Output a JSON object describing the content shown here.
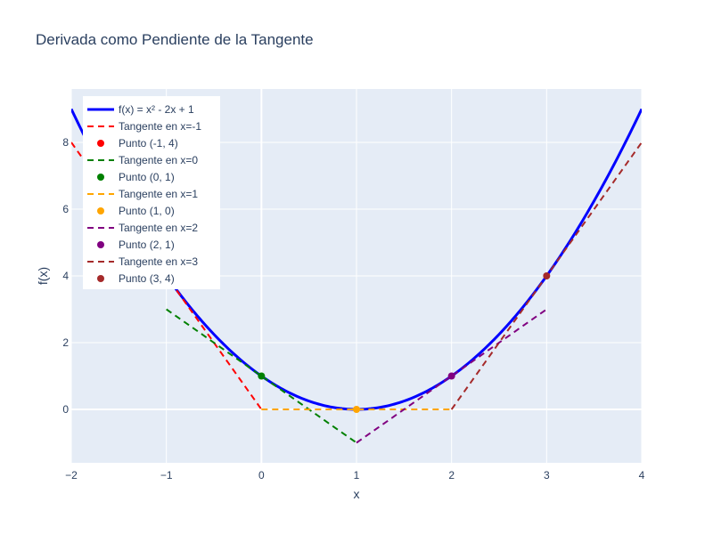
{
  "chart_data": {
    "type": "line",
    "title": "Derivada como Pendiente de la Tangente",
    "xlabel": "x",
    "ylabel": "f(x)",
    "xlim": [
      -2,
      4
    ],
    "ylim": [
      -1.6,
      9.6
    ],
    "x_ticks": [
      -2,
      -1,
      0,
      1,
      2,
      3,
      4
    ],
    "x_tick_labels": [
      "−2",
      "−1",
      "0",
      "1",
      "2",
      "3",
      "4"
    ],
    "y_ticks": [
      0,
      2,
      4,
      6,
      8
    ],
    "y_tick_labels": [
      "0",
      "2",
      "4",
      "6",
      "8"
    ],
    "grid": true,
    "legend_position": "top-left",
    "colors": {
      "plot_bg": "#e5ecf6",
      "grid": "#ffffff",
      "curve": "#0000ff",
      "red": "#ff0000",
      "green": "#008000",
      "orange": "#ffa500",
      "purple": "#800080",
      "brown": "#a52a2a",
      "text": "#2a3f5f"
    },
    "curve": {
      "name": "f(x) = x² - 2x + 1",
      "coefficients": [
        1,
        -2,
        1
      ],
      "x_range": [
        -2,
        4
      ]
    },
    "tangents": [
      {
        "name": "Tangente en x=-1",
        "x": [
          -2,
          0
        ],
        "y": [
          8,
          0
        ],
        "color": "red"
      },
      {
        "name": "Tangente en x=0",
        "x": [
          -1,
          1
        ],
        "y": [
          3,
          -1
        ],
        "color": "green"
      },
      {
        "name": "Tangente en x=1",
        "x": [
          0,
          2
        ],
        "y": [
          0,
          0
        ],
        "color": "orange"
      },
      {
        "name": "Tangente en x=2",
        "x": [
          1,
          3
        ],
        "y": [
          -1,
          3
        ],
        "color": "purple"
      },
      {
        "name": "Tangente en x=3",
        "x": [
          2,
          4
        ],
        "y": [
          0,
          8
        ],
        "color": "brown"
      }
    ],
    "points": [
      {
        "name": "Punto (-1, 4)",
        "x": -1,
        "y": 4,
        "color": "red"
      },
      {
        "name": "Punto (0, 1)",
        "x": 0,
        "y": 1,
        "color": "green"
      },
      {
        "name": "Punto (1, 0)",
        "x": 1,
        "y": 0,
        "color": "orange"
      },
      {
        "name": "Punto (2, 1)",
        "x": 2,
        "y": 1,
        "color": "purple"
      },
      {
        "name": "Punto (3, 4)",
        "x": 3,
        "y": 4,
        "color": "brown"
      }
    ],
    "legend_order": [
      {
        "kind": "curve"
      },
      {
        "kind": "tangent",
        "index": 0
      },
      {
        "kind": "point",
        "index": 0
      },
      {
        "kind": "tangent",
        "index": 1
      },
      {
        "kind": "point",
        "index": 1
      },
      {
        "kind": "tangent",
        "index": 2
      },
      {
        "kind": "point",
        "index": 2
      },
      {
        "kind": "tangent",
        "index": 3
      },
      {
        "kind": "point",
        "index": 3
      },
      {
        "kind": "tangent",
        "index": 4
      },
      {
        "kind": "point",
        "index": 4
      }
    ]
  }
}
